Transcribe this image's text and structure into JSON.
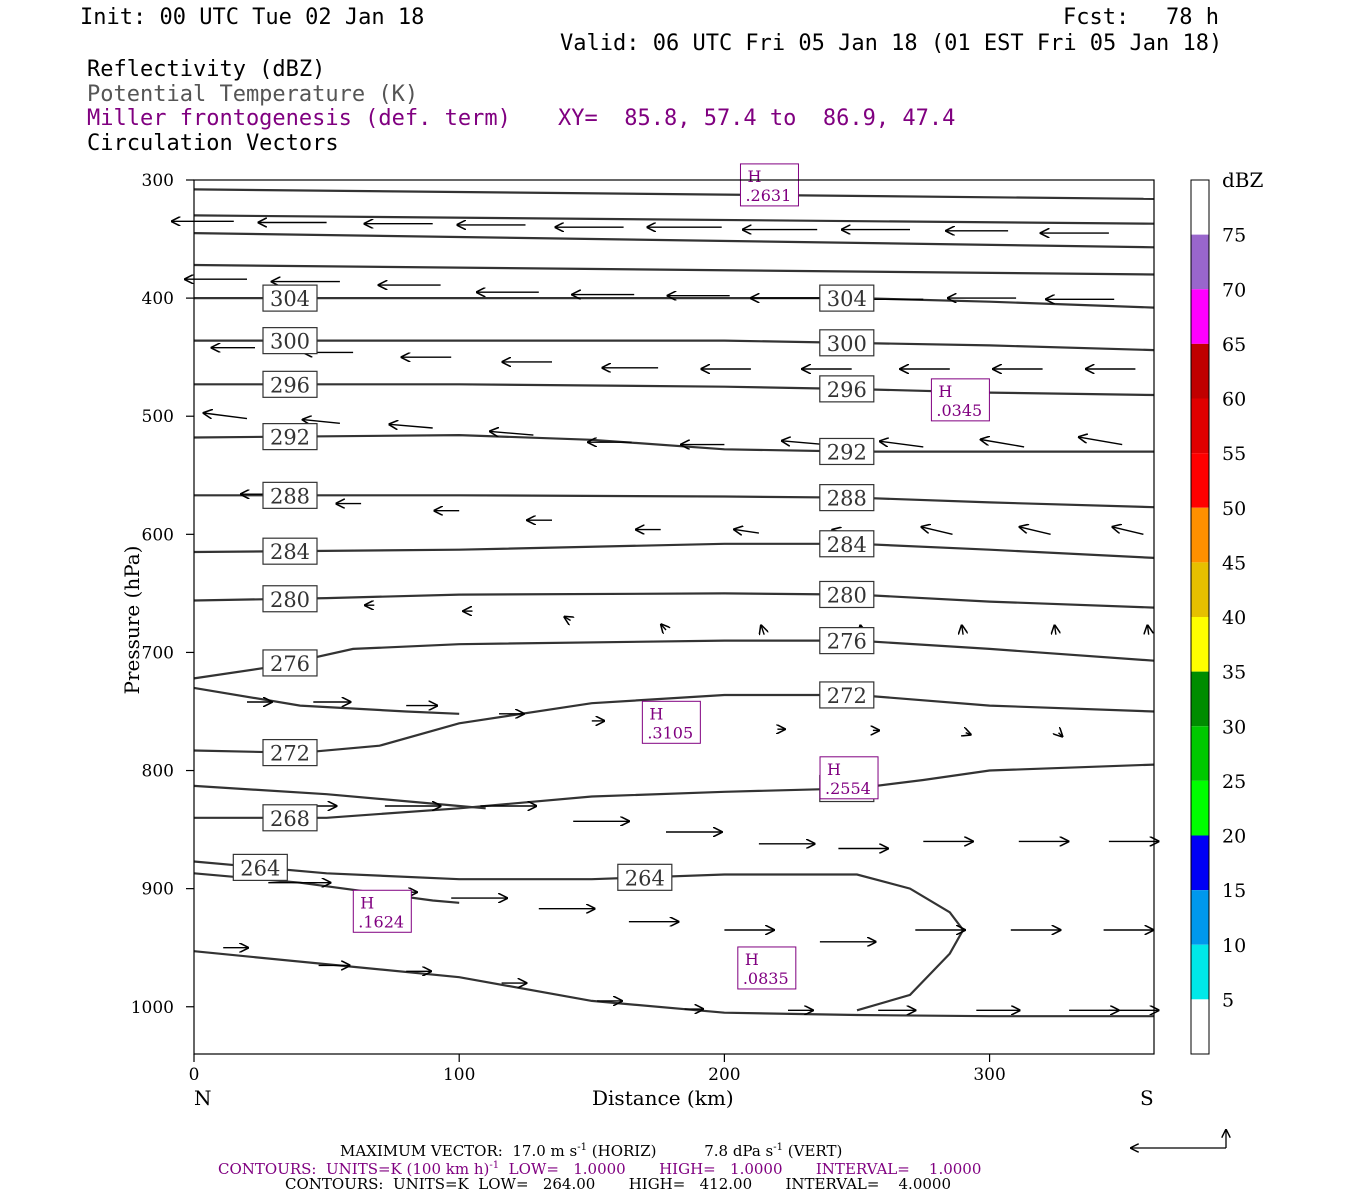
{
  "header": {
    "init": "Init: 00 UTC Tue 02 Jan 18",
    "fcst_label": "Fcst:",
    "fcst_value": "78 h",
    "valid": "Valid: 06 UTC Fri 05 Jan 18 (01 EST Fri 05 Jan 18)",
    "field1": "Reflectivity (dBZ)",
    "field2": "Potential Temperature (K)",
    "field3": "Miller frontogenesis (def. term)",
    "xy": "XY=  85.8, 57.4 to  86.9, 47.4",
    "field4": "Circulation Vectors"
  },
  "chart_data": {
    "type": "cross-section",
    "xlabel": "Distance (km)",
    "ylabel": "Pressure (hPa)",
    "xlim": [
      0,
      362
    ],
    "ylim": [
      1040,
      300
    ],
    "x_ticks": [
      "0",
      "100",
      "200",
      "300"
    ],
    "y_ticks": [
      "300",
      "400",
      "500",
      "600",
      "700",
      "800",
      "900",
      "1000"
    ],
    "left_end_label": "N",
    "right_end_label": "S",
    "theta_contours": [
      {
        "label": "304",
        "x": [
          0,
          100,
          200,
          250,
          300,
          362
        ],
        "p": [
          400,
          400,
          400,
          400,
          403,
          408
        ]
      },
      {
        "label": "300",
        "x": [
          0,
          100,
          200,
          300,
          362
        ],
        "p": [
          436,
          436,
          436,
          440,
          444
        ]
      },
      {
        "label": "296",
        "x": [
          0,
          100,
          200,
          250,
          300,
          362
        ],
        "p": [
          473,
          473,
          475,
          477,
          480,
          482
        ]
      },
      {
        "label": "292",
        "x": [
          0,
          100,
          150,
          200,
          250,
          300,
          362
        ],
        "p": [
          518,
          516,
          520,
          528,
          530,
          530,
          530
        ]
      },
      {
        "label": "288",
        "x": [
          0,
          100,
          200,
          250,
          300,
          362
        ],
        "p": [
          567,
          567,
          568,
          569,
          573,
          577
        ]
      },
      {
        "label": "284",
        "x": [
          0,
          100,
          200,
          250,
          300,
          362
        ],
        "p": [
          615,
          613,
          608,
          608,
          613,
          620
        ]
      },
      {
        "label": "280",
        "x": [
          0,
          50,
          100,
          200,
          250,
          300,
          362
        ],
        "p": [
          656,
          654,
          651,
          650,
          651,
          657,
          662
        ]
      },
      {
        "label": "276",
        "x": [
          0,
          30,
          60,
          100,
          200,
          250,
          300,
          362
        ],
        "p": [
          722,
          712,
          697,
          693,
          690,
          690,
          697,
          707
        ]
      },
      {
        "label": "272",
        "x": [
          0,
          40,
          70,
          100,
          150,
          200,
          250,
          300,
          362
        ],
        "p": [
          783,
          785,
          779,
          760,
          743,
          736,
          736,
          745,
          750
        ]
      },
      {
        "label": "268",
        "x": [
          0,
          50,
          100,
          150,
          200,
          250,
          275,
          300,
          362
        ],
        "p": [
          840,
          840,
          832,
          822,
          818,
          815,
          808,
          800,
          795
        ]
      },
      {
        "label": "264",
        "x": [
          0,
          50,
          100,
          150,
          200,
          250,
          270,
          285,
          290,
          285,
          270,
          250
        ],
        "p": [
          877,
          887,
          892,
          892,
          888,
          888,
          900,
          920,
          935,
          955,
          990,
          1003
        ]
      },
      {
        "label": "",
        "x": [
          0,
          100,
          150,
          200,
          250,
          300,
          362
        ],
        "p": [
          953,
          975,
          995,
          1005,
          1007,
          1008,
          1008
        ]
      },
      {
        "label": "",
        "x": [
          0,
          362
        ],
        "p": [
          308,
          316
        ]
      },
      {
        "label": "",
        "x": [
          0,
          362
        ],
        "p": [
          330,
          337
        ]
      },
      {
        "label": "",
        "x": [
          0,
          362
        ],
        "p": [
          345,
          357
        ]
      },
      {
        "label": "",
        "x": [
          0,
          362
        ],
        "p": [
          372,
          380
        ]
      },
      {
        "label": "",
        "x": [
          0,
          40,
          80,
          100
        ],
        "p": [
          730,
          745,
          750,
          752
        ]
      },
      {
        "label": "",
        "x": [
          0,
          50,
          100,
          110
        ],
        "p": [
          813,
          820,
          830,
          832
        ]
      },
      {
        "label": "",
        "x": [
          0,
          40,
          90,
          100
        ],
        "p": [
          887,
          895,
          910,
          912
        ]
      }
    ],
    "frontogenesis_labels": [
      {
        "label": "H",
        "value": ".2631",
        "x": 217,
        "p": 305
      },
      {
        "label": "H",
        "value": ".0345",
        "x": 289,
        "p": 487
      },
      {
        "label": "H",
        "value": ".3105",
        "x": 180,
        "p": 760
      },
      {
        "label": "H",
        "value": ".2554",
        "x": 247,
        "p": 807
      },
      {
        "label": "H",
        "value": ".1624",
        "x": 71,
        "p": 920
      },
      {
        "label": "H",
        "value": ".0835",
        "x": 216,
        "p": 968
      }
    ],
    "vectors": [
      {
        "x": 15,
        "p": 335,
        "u": -10,
        "w": 0
      },
      {
        "x": 50,
        "p": 336,
        "u": -11,
        "w": 0
      },
      {
        "x": 90,
        "p": 337,
        "u": -11,
        "w": 0
      },
      {
        "x": 125,
        "p": 338,
        "u": -11,
        "w": 0
      },
      {
        "x": 162,
        "p": 340,
        "u": -11,
        "w": 0
      },
      {
        "x": 199,
        "p": 340,
        "u": -12,
        "w": 0
      },
      {
        "x": 235,
        "p": 342,
        "u": -12,
        "w": 0
      },
      {
        "x": 270,
        "p": 342,
        "u": -11,
        "w": 0
      },
      {
        "x": 307,
        "p": 343,
        "u": -10,
        "w": 0
      },
      {
        "x": 345,
        "p": 345,
        "u": -11,
        "w": 0
      },
      {
        "x": 20,
        "p": 384,
        "u": -10,
        "w": 0
      },
      {
        "x": 55,
        "p": 386,
        "u": -11,
        "w": 0
      },
      {
        "x": 93,
        "p": 389,
        "u": -10,
        "w": 0
      },
      {
        "x": 130,
        "p": 395,
        "u": -10,
        "w": 0
      },
      {
        "x": 166,
        "p": 397,
        "u": -10,
        "w": 0
      },
      {
        "x": 202,
        "p": 398,
        "u": -10,
        "w": 0
      },
      {
        "x": 238,
        "p": 400,
        "u": -12,
        "w": 0
      },
      {
        "x": 275,
        "p": 401,
        "u": -11,
        "w": 0
      },
      {
        "x": 310,
        "p": 400,
        "u": -11,
        "w": 0
      },
      {
        "x": 347,
        "p": 401,
        "u": -11,
        "w": 0
      },
      {
        "x": 23,
        "p": 442,
        "u": -7,
        "w": 0
      },
      {
        "x": 60,
        "p": 446,
        "u": -8,
        "w": 0
      },
      {
        "x": 97,
        "p": 450,
        "u": -8,
        "w": 0
      },
      {
        "x": 135,
        "p": 454,
        "u": -8,
        "w": 0
      },
      {
        "x": 175,
        "p": 459,
        "u": -9,
        "w": 0
      },
      {
        "x": 210,
        "p": 460,
        "u": -8,
        "w": 0
      },
      {
        "x": 248,
        "p": 460,
        "u": -8,
        "w": 0
      },
      {
        "x": 285,
        "p": 460,
        "u": -8,
        "w": 0
      },
      {
        "x": 320,
        "p": 460,
        "u": -8,
        "w": 0
      },
      {
        "x": 355,
        "p": 460,
        "u": -8,
        "w": 0
      },
      {
        "x": 20,
        "p": 502,
        "u": -7,
        "w": 0.3
      },
      {
        "x": 55,
        "p": 506,
        "u": -6,
        "w": 0.2
      },
      {
        "x": 90,
        "p": 510,
        "u": -7,
        "w": 0.2
      },
      {
        "x": 128,
        "p": 516,
        "u": -7,
        "w": 0.2
      },
      {
        "x": 165,
        "p": 522,
        "u": -7,
        "w": 0
      },
      {
        "x": 200,
        "p": 524,
        "u": -7,
        "w": 0
      },
      {
        "x": 238,
        "p": 524,
        "u": -7,
        "w": 0.2
      },
      {
        "x": 275,
        "p": 526,
        "u": -7,
        "w": 0.3
      },
      {
        "x": 313,
        "p": 526,
        "u": -7,
        "w": 0.4
      },
      {
        "x": 350,
        "p": 524,
        "u": -7,
        "w": 0.4
      },
      {
        "x": 27,
        "p": 566,
        "u": -4,
        "w": 0
      },
      {
        "x": 63,
        "p": 574,
        "u": -4,
        "w": 0
      },
      {
        "x": 100,
        "p": 580,
        "u": -4,
        "w": 0
      },
      {
        "x": 135,
        "p": 588,
        "u": -4,
        "w": 0
      },
      {
        "x": 176,
        "p": 596,
        "u": -4,
        "w": 0
      },
      {
        "x": 213,
        "p": 599,
        "u": -4,
        "w": 0.2
      },
      {
        "x": 250,
        "p": 601,
        "u": -4,
        "w": 0.3
      },
      {
        "x": 286,
        "p": 600,
        "u": -5,
        "w": 0.4
      },
      {
        "x": 323,
        "p": 600,
        "u": -5,
        "w": 0.4
      },
      {
        "x": 358,
        "p": 600,
        "u": -5,
        "w": 0.4
      },
      {
        "x": 30,
        "p": 650,
        "u": -1.5,
        "w": 0.2
      },
      {
        "x": 68,
        "p": 660,
        "u": -1.5,
        "w": 0
      },
      {
        "x": 105,
        "p": 665,
        "u": -1.5,
        "w": 0
      },
      {
        "x": 142,
        "p": 673,
        "u": -1,
        "w": 0.2
      },
      {
        "x": 178,
        "p": 681,
        "u": -0.8,
        "w": 0.3
      },
      {
        "x": 215,
        "p": 685,
        "u": -0.5,
        "w": 0.5
      },
      {
        "x": 252,
        "p": 685,
        "u": -0.3,
        "w": 0.5
      },
      {
        "x": 290,
        "p": 685,
        "u": -0.2,
        "w": 0.5
      },
      {
        "x": 325,
        "p": 685,
        "u": -0.2,
        "w": 0.5
      },
      {
        "x": 360,
        "p": 685,
        "u": -0.2,
        "w": 0.5
      },
      {
        "x": 20,
        "p": 742,
        "u": 4,
        "w": 0
      },
      {
        "x": 45,
        "p": 742,
        "u": 6,
        "w": 0
      },
      {
        "x": 80,
        "p": 745,
        "u": 5,
        "w": 0
      },
      {
        "x": 115,
        "p": 752,
        "u": 4,
        "w": 0
      },
      {
        "x": 150,
        "p": 758,
        "u": 2,
        "w": 0
      },
      {
        "x": 186,
        "p": 762,
        "u": 2,
        "w": 0
      },
      {
        "x": 220,
        "p": 765,
        "u": 1.2,
        "w": 0
      },
      {
        "x": 256,
        "p": 766,
        "u": 1,
        "w": 0
      },
      {
        "x": 291,
        "p": 768,
        "u": 0.8,
        "w": -0.1
      },
      {
        "x": 326,
        "p": 768,
        "u": 0.6,
        "w": -0.2
      },
      {
        "x": 35,
        "p": 830,
        "u": 8,
        "w": 0
      },
      {
        "x": 72,
        "p": 830,
        "u": 9,
        "w": 0
      },
      {
        "x": 108,
        "p": 830,
        "u": 9,
        "w": 0
      },
      {
        "x": 143,
        "p": 843,
        "u": 9,
        "w": 0
      },
      {
        "x": 178,
        "p": 852,
        "u": 9,
        "w": 0
      },
      {
        "x": 213,
        "p": 862,
        "u": 9,
        "w": 0
      },
      {
        "x": 243,
        "p": 866,
        "u": 8,
        "w": 0
      },
      {
        "x": 275,
        "p": 860,
        "u": 8,
        "w": 0
      },
      {
        "x": 311,
        "p": 860,
        "u": 8,
        "w": 0
      },
      {
        "x": 345,
        "p": 860,
        "u": 8,
        "w": 0
      },
      {
        "x": 28,
        "p": 895,
        "u": 10,
        "w": 0
      },
      {
        "x": 63,
        "p": 903,
        "u": 9,
        "w": 0
      },
      {
        "x": 97,
        "p": 908,
        "u": 9,
        "w": 0
      },
      {
        "x": 130,
        "p": 917,
        "u": 9,
        "w": 0
      },
      {
        "x": 164,
        "p": 928,
        "u": 8,
        "w": 0
      },
      {
        "x": 200,
        "p": 935,
        "u": 8,
        "w": 0
      },
      {
        "x": 236,
        "p": 945,
        "u": 9,
        "w": 0
      },
      {
        "x": 272,
        "p": 935,
        "u": 8,
        "w": 0
      },
      {
        "x": 308,
        "p": 935,
        "u": 8,
        "w": 0
      },
      {
        "x": 343,
        "p": 935,
        "u": 8,
        "w": 0
      },
      {
        "x": 11,
        "p": 950,
        "u": 4,
        "w": 0
      },
      {
        "x": 47,
        "p": 965,
        "u": 5,
        "w": 0
      },
      {
        "x": 80,
        "p": 970,
        "u": 4,
        "w": 0
      },
      {
        "x": 116,
        "p": 980,
        "u": 4,
        "w": 0
      },
      {
        "x": 152,
        "p": 995,
        "u": 4,
        "w": 0
      },
      {
        "x": 185,
        "p": 1002,
        "u": 3,
        "w": 0
      },
      {
        "x": 224,
        "p": 1003,
        "u": 4,
        "w": 0
      },
      {
        "x": 258,
        "p": 1003,
        "u": 6,
        "w": 0
      },
      {
        "x": 295,
        "p": 1003,
        "u": 7,
        "w": 0
      },
      {
        "x": 330,
        "p": 1003,
        "u": 8,
        "w": 0
      },
      {
        "x": 345,
        "p": 1003,
        "u": 8,
        "w": 0
      }
    ],
    "colorbar": {
      "unit": "dBZ",
      "labels": [
        "5",
        "10",
        "15",
        "20",
        "25",
        "30",
        "35",
        "40",
        "45",
        "50",
        "55",
        "60",
        "65",
        "70",
        "75"
      ],
      "colors": [
        "#ffffff",
        "#00e8e8",
        "#0098ec",
        "#0000f5",
        "#00ff00",
        "#00c800",
        "#008c00",
        "#ffff00",
        "#e6c000",
        "#ff9000",
        "#ff0000",
        "#e00000",
        "#c00000",
        "#ff00ff",
        "#9966cc",
        "#ffffff"
      ]
    }
  },
  "footer": {
    "max_vector_label": "MAXIMUM VECTOR:",
    "max_horiz": "17.0 m s",
    "horiz_tag": "(HORIZ)",
    "max_vert": "7.8 dPa s",
    "vert_tag": "(VERT)",
    "sup": "-1",
    "contours1_a": "CONTOURS:  UNITS=K (100 km h)",
    "contours1_b": "LOW=   1.0000       HIGH=   1.0000       INTERVAL=    1.0000",
    "contours2": "CONTOURS:  UNITS=K  LOW=   264.00       HIGH=   412.00       INTERVAL=    4.0000"
  }
}
